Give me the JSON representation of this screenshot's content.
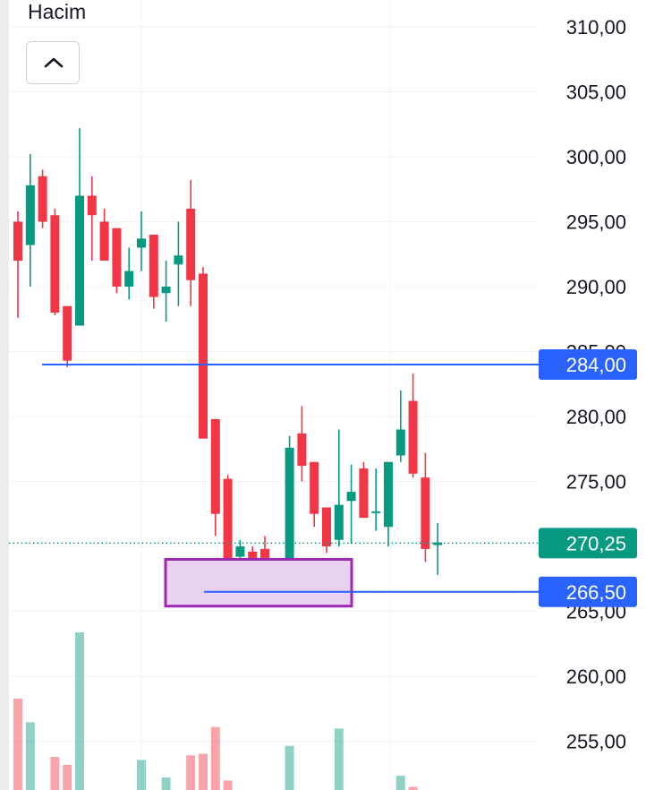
{
  "panel": {
    "volume_label": "Hacim",
    "collapse_icon": "chevron-up-icon"
  },
  "chart_data": {
    "type": "candlestick",
    "price_axis": {
      "ticks": [
        "310,00",
        "305,00",
        "300,00",
        "295,00",
        "290,00",
        "285,00",
        "280,00",
        "275,00",
        "270,00",
        "265,00",
        "260,00",
        "255,00"
      ],
      "tick_values": [
        310,
        305,
        300,
        295,
        290,
        285,
        280,
        275,
        270,
        265,
        260,
        255
      ],
      "range": [
        252.5,
        311.5
      ]
    },
    "price_labels": [
      {
        "text": "284,00",
        "value": 284.0,
        "color": "#2962ff"
      },
      {
        "text": "270,25",
        "value": 270.25,
        "color": "#089981"
      },
      {
        "text": "266,50",
        "value": 266.5,
        "color": "#2962ff"
      }
    ],
    "colors": {
      "up": "#089981",
      "down": "#f23645",
      "line": "#2962ff",
      "box_border": "#9c27b0",
      "box_fill": "#e9d2f0"
    },
    "highlight_box": {
      "high": 269.0,
      "low": 265.4,
      "start_index": 12,
      "end_index": 27
    },
    "candles": [
      {
        "o": 295.0,
        "h": 295.8,
        "l": 287.6,
        "c": 292.0
      },
      {
        "o": 293.2,
        "h": 300.2,
        "l": 290.0,
        "c": 297.8
      },
      {
        "o": 298.5,
        "h": 299.0,
        "l": 294.5,
        "c": 295.0
      },
      {
        "o": 295.5,
        "h": 296.0,
        "l": 287.8,
        "c": 288.0
      },
      {
        "o": 288.5,
        "h": 288.5,
        "l": 283.8,
        "c": 284.3
      },
      {
        "o": 287.0,
        "h": 302.2,
        "l": 287.0,
        "c": 297.0
      },
      {
        "o": 297.0,
        "h": 298.5,
        "l": 292.0,
        "c": 295.5
      },
      {
        "o": 295.0,
        "h": 296.0,
        "l": 292.0,
        "c": 292.0
      },
      {
        "o": 294.5,
        "h": 294.5,
        "l": 289.5,
        "c": 290.0
      },
      {
        "o": 290.0,
        "h": 293.0,
        "l": 289.0,
        "c": 291.2
      },
      {
        "o": 293.0,
        "h": 295.8,
        "l": 291.2,
        "c": 293.7
      },
      {
        "o": 294.0,
        "h": 294.0,
        "l": 288.3,
        "c": 289.2
      },
      {
        "o": 289.5,
        "h": 292.0,
        "l": 287.3,
        "c": 290.0
      },
      {
        "o": 291.7,
        "h": 295.0,
        "l": 288.5,
        "c": 292.4
      },
      {
        "o": 296.0,
        "h": 298.2,
        "l": 288.5,
        "c": 290.5
      },
      {
        "o": 291.0,
        "h": 291.5,
        "l": 278.3,
        "c": 278.3
      },
      {
        "o": 279.8,
        "h": 279.8,
        "l": 270.8,
        "c": 272.5
      },
      {
        "o": 275.2,
        "h": 275.5,
        "l": 266.7,
        "c": 267.8
      },
      {
        "o": 269.2,
        "h": 270.5,
        "l": 266.8,
        "c": 270.0
      },
      {
        "o": 269.6,
        "h": 270.0,
        "l": 268.3,
        "c": 268.2
      },
      {
        "o": 269.8,
        "h": 270.8,
        "l": 266.8,
        "c": 267.8
      },
      {
        "o": 266.8,
        "h": 268.0,
        "l": 266.6,
        "c": 267.1
      },
      {
        "o": 268.2,
        "h": 278.5,
        "l": 268.0,
        "c": 277.6
      },
      {
        "o": 278.7,
        "h": 280.8,
        "l": 275.0,
        "c": 276.2
      },
      {
        "o": 276.5,
        "h": 276.5,
        "l": 271.5,
        "c": 272.5
      },
      {
        "o": 273.0,
        "h": 273.0,
        "l": 269.5,
        "c": 270.0
      },
      {
        "o": 270.5,
        "h": 279.0,
        "l": 270.0,
        "c": 273.2
      },
      {
        "o": 273.5,
        "h": 276.3,
        "l": 270.2,
        "c": 274.2
      },
      {
        "o": 276.0,
        "h": 276.5,
        "l": 272.2,
        "c": 272.2
      },
      {
        "o": 272.7,
        "h": 276.0,
        "l": 271.2,
        "c": 272.7
      },
      {
        "o": 271.5,
        "h": 276.5,
        "l": 270.0,
        "c": 276.5
      },
      {
        "o": 277.0,
        "h": 282.0,
        "l": 276.5,
        "c": 279.0
      },
      {
        "o": 281.2,
        "h": 283.3,
        "l": 275.3,
        "c": 275.6
      },
      {
        "o": 275.3,
        "h": 277.2,
        "l": 268.8,
        "c": 269.8
      },
      {
        "o": 270.1,
        "h": 271.8,
        "l": 267.8,
        "c": 270.3
      }
    ],
    "volume": [
      {
        "v": 0.58,
        "dir": "down"
      },
      {
        "v": 0.43,
        "dir": "up"
      },
      {
        "v": 0.0,
        "dir": "down"
      },
      {
        "v": 0.21,
        "dir": "down"
      },
      {
        "v": 0.16,
        "dir": "down"
      },
      {
        "v": 1.0,
        "dir": "up"
      },
      {
        "v": 0.0,
        "dir": "up"
      },
      {
        "v": 0.0,
        "dir": "down"
      },
      {
        "v": 0.0,
        "dir": "down"
      },
      {
        "v": 0.0,
        "dir": "up"
      },
      {
        "v": 0.19,
        "dir": "up"
      },
      {
        "v": 0.0,
        "dir": "down"
      },
      {
        "v": 0.08,
        "dir": "up"
      },
      {
        "v": 0.0,
        "dir": "up"
      },
      {
        "v": 0.22,
        "dir": "down"
      },
      {
        "v": 0.23,
        "dir": "down"
      },
      {
        "v": 0.4,
        "dir": "down"
      },
      {
        "v": 0.06,
        "dir": "down"
      },
      {
        "v": 0.0,
        "dir": "up"
      },
      {
        "v": 0.0,
        "dir": "down"
      },
      {
        "v": 0.0,
        "dir": "down"
      },
      {
        "v": 0.0,
        "dir": "up"
      },
      {
        "v": 0.28,
        "dir": "up"
      },
      {
        "v": 0.0,
        "dir": "down"
      },
      {
        "v": 0.0,
        "dir": "down"
      },
      {
        "v": 0.0,
        "dir": "down"
      },
      {
        "v": 0.39,
        "dir": "up"
      },
      {
        "v": 0.0,
        "dir": "up"
      },
      {
        "v": 0.0,
        "dir": "down"
      },
      {
        "v": 0.0,
        "dir": "up"
      },
      {
        "v": 0.0,
        "dir": "up"
      },
      {
        "v": 0.09,
        "dir": "up"
      },
      {
        "v": 0.02,
        "dir": "down"
      },
      {
        "v": 0.0,
        "dir": "down"
      },
      {
        "v": 0.0,
        "dir": "up"
      }
    ]
  }
}
